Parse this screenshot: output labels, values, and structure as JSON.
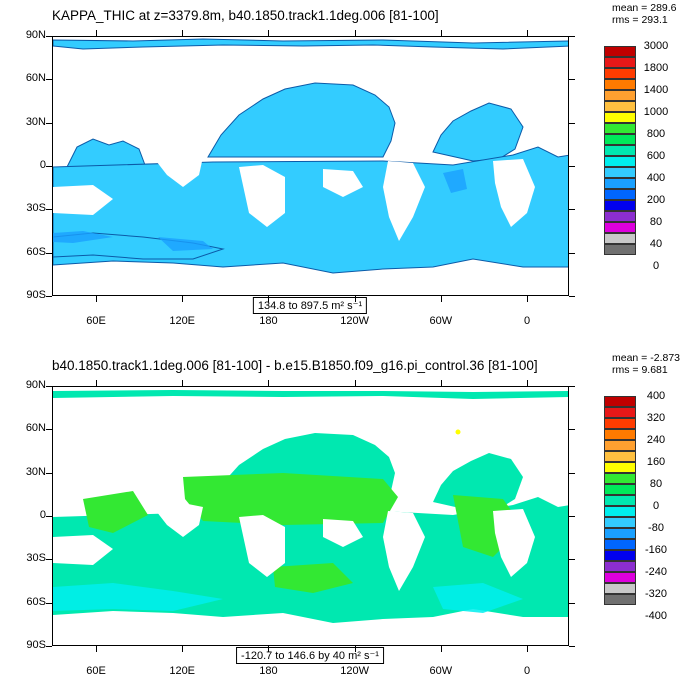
{
  "chart_data": [
    {
      "type": "heatmap",
      "title": "KAPPA_THIC at z=3379.8m, b40.1850.track1.1deg.006 [81-100]",
      "stats": {
        "mean": "mean = 289.6",
        "rms": "rms = 293.1"
      },
      "range_label": "134.8 to 897.5 m² s⁻¹",
      "y_ticks": [
        "90N",
        "60N",
        "30N",
        "0",
        "30S",
        "60S",
        "90S"
      ],
      "x_ticks": [
        "60E",
        "120E",
        "180",
        "120W",
        "60W",
        "0"
      ],
      "colorbar_labels": [
        "3000",
        "1800",
        "1400",
        "1000",
        "800",
        "600",
        "400",
        "200",
        "80",
        "40",
        "0"
      ],
      "colorbar_colors": [
        "#c00000",
        "#e81818",
        "#ff3c00",
        "#ff7a00",
        "#ffa030",
        "#ffc040",
        "#ffff00",
        "#33e833",
        "#00e85a",
        "#00e8b0",
        "#00eeee",
        "#33ccff",
        "#1aa0ff",
        "#0066ff",
        "#0000ee",
        "#8c2ed0",
        "#dd00dd",
        "#c8c8c8",
        "#707070"
      ],
      "dominant_color": "#33ccff"
    },
    {
      "type": "heatmap",
      "title": "b40.1850.track1.1deg.006 [81-100] - b.e15.B1850.f09_g16.pi_control.36 [81-100]",
      "stats": {
        "mean": "mean = -2.873",
        "rms": "rms = 9.681"
      },
      "range_label": "-120.7 to 146.6 by 40 m² s⁻¹",
      "y_ticks": [
        "90N",
        "60N",
        "30N",
        "0",
        "30S",
        "60S",
        "90S"
      ],
      "x_ticks": [
        "60E",
        "120E",
        "180",
        "120W",
        "60W",
        "0"
      ],
      "colorbar_labels": [
        "400",
        "320",
        "240",
        "160",
        "80",
        "0",
        "-80",
        "-160",
        "-240",
        "-320",
        "-400"
      ],
      "colorbar_colors": [
        "#c00000",
        "#e81818",
        "#ff3c00",
        "#ff7a00",
        "#ffa030",
        "#ffc040",
        "#ffff00",
        "#33e833",
        "#00e85a",
        "#00e8b0",
        "#00eeee",
        "#33ccff",
        "#1aa0ff",
        "#0066ff",
        "#0000ee",
        "#8c2ed0",
        "#dd00dd",
        "#c8c8c8",
        "#707070"
      ],
      "dominant_color": "#00e8b0"
    }
  ]
}
